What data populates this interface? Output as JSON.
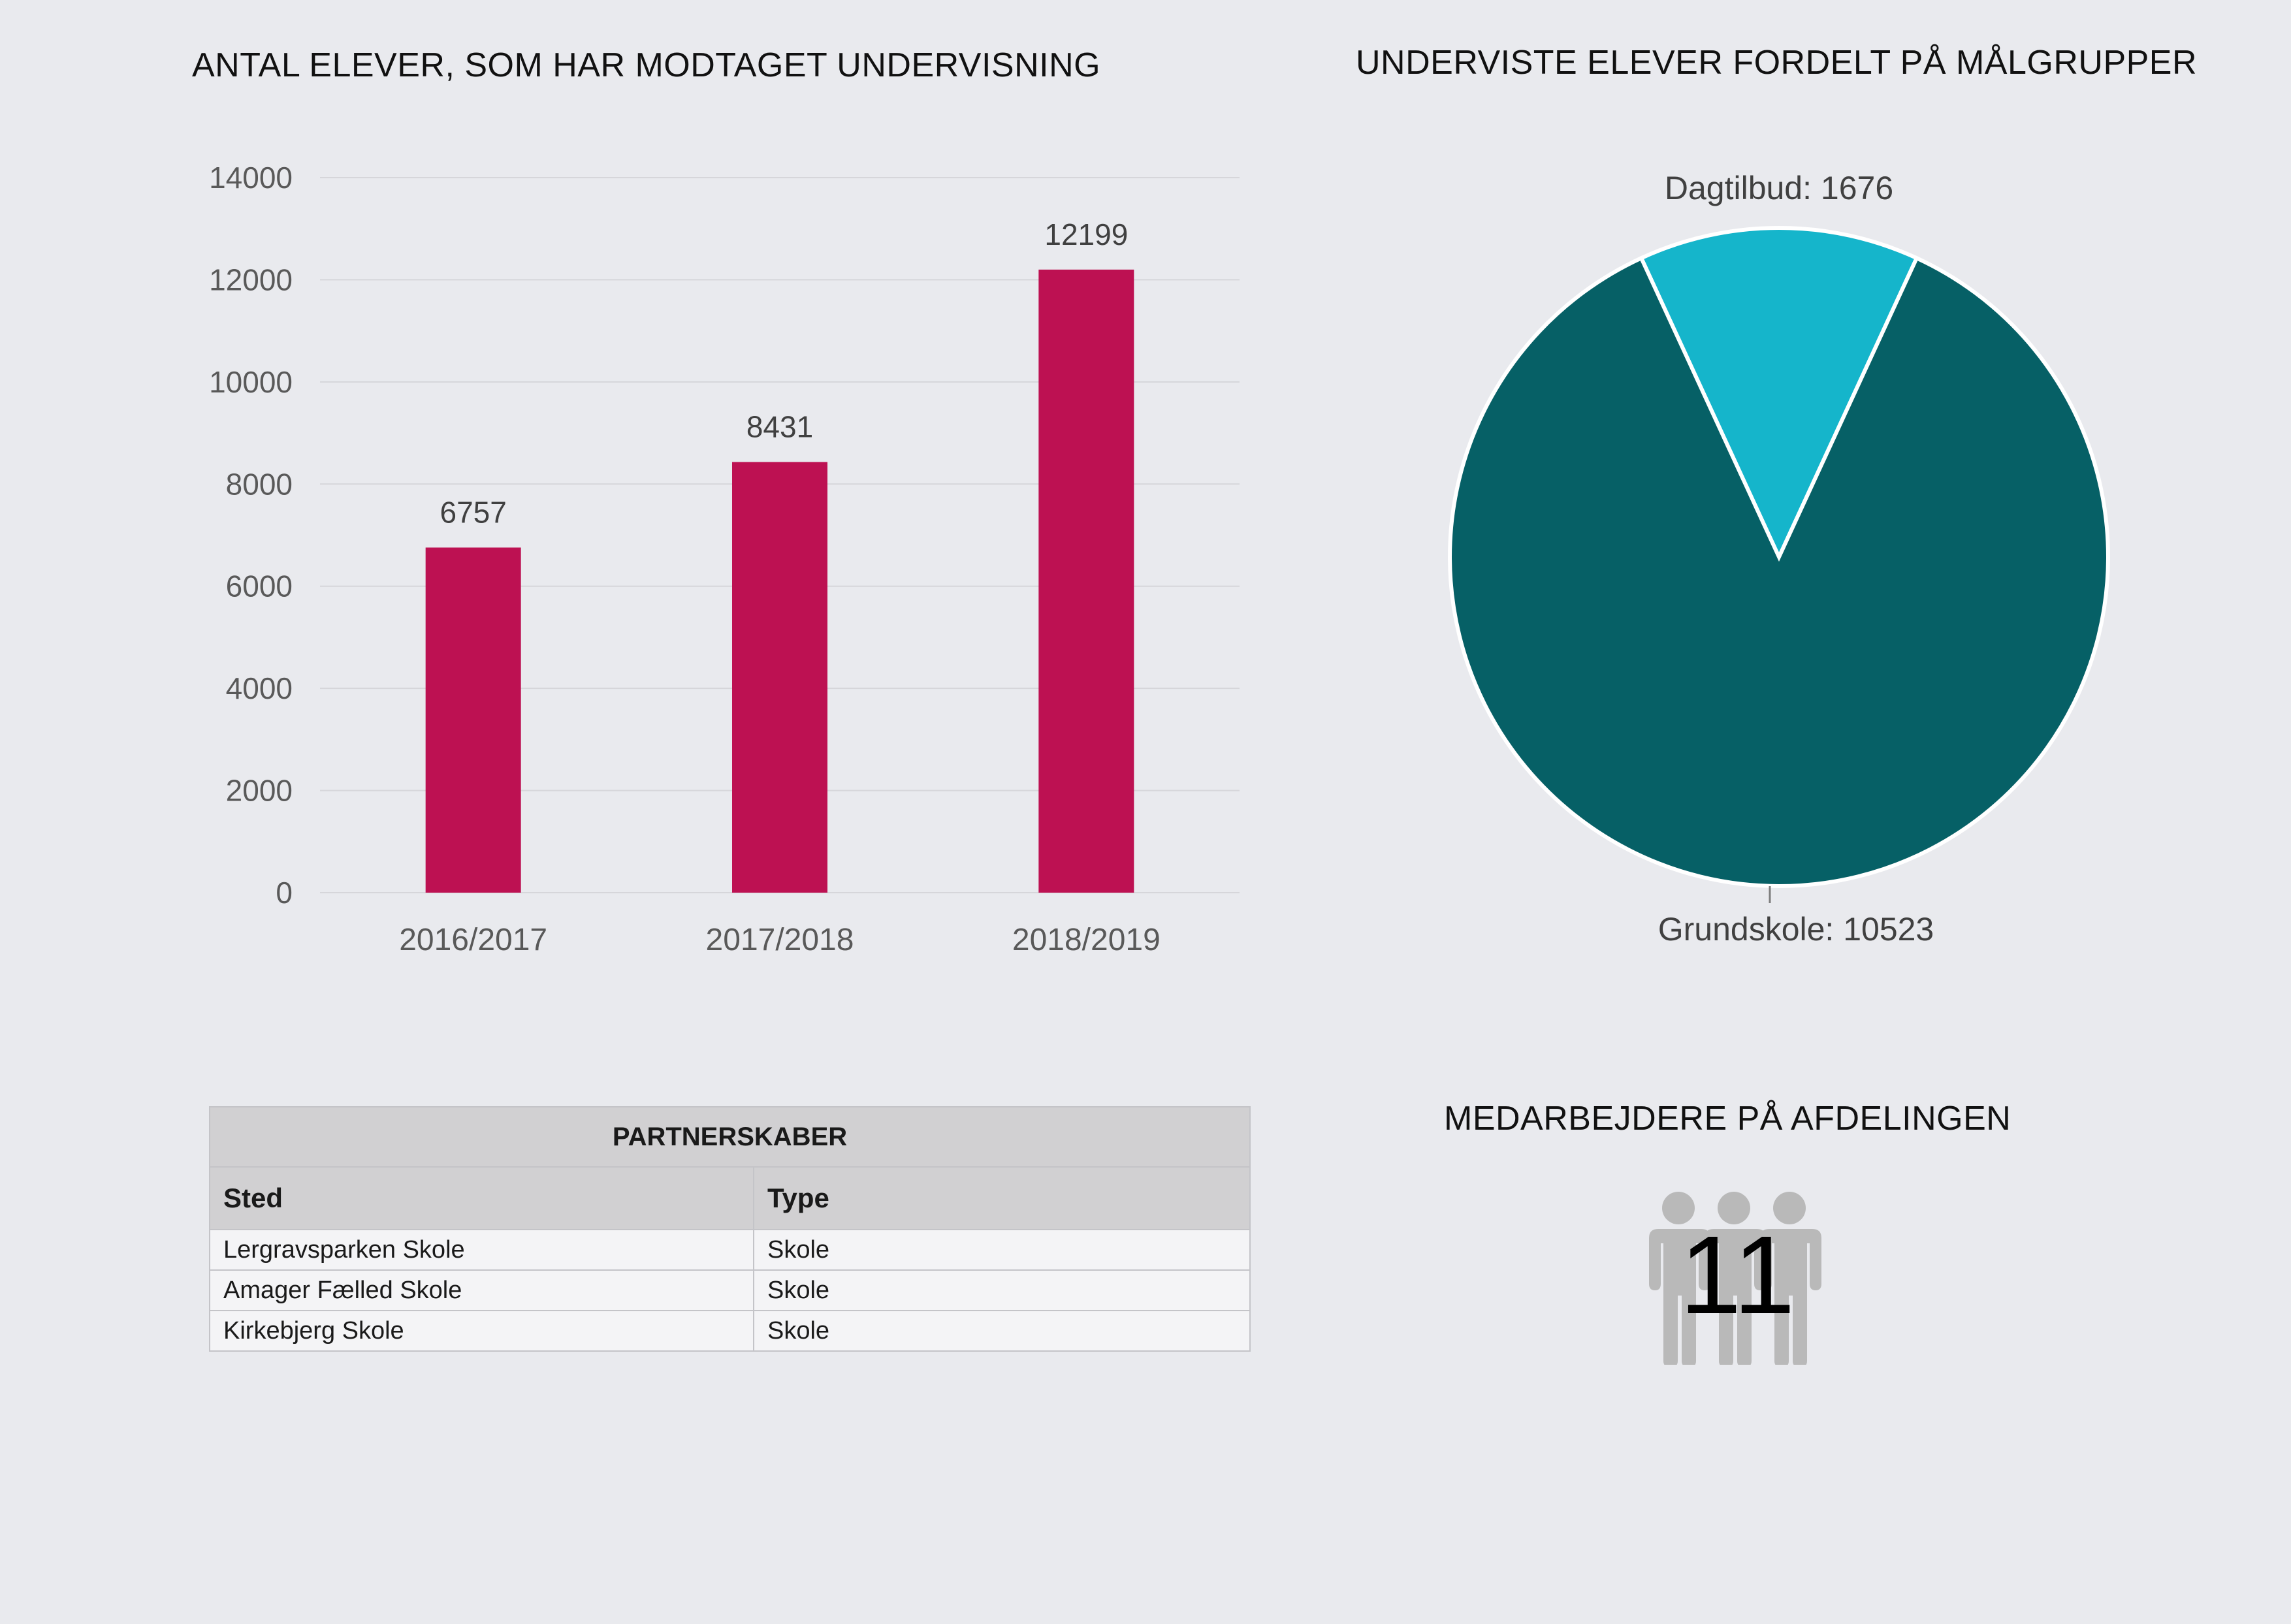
{
  "chart_data": [
    {
      "type": "bar",
      "title": "ANTAL ELEVER, SOM HAR MODTAGET UNDERVISNING",
      "categories": [
        "2016/2017",
        "2017/2018",
        "2018/2019"
      ],
      "values": [
        6757,
        8431,
        12199
      ],
      "ylim": [
        0,
        14000
      ],
      "yticks": [
        0,
        2000,
        4000,
        6000,
        8000,
        10000,
        12000,
        14000
      ],
      "grid": true,
      "bar_color": "#bd1152"
    },
    {
      "type": "pie",
      "title": "UNDERVISTE ELEVER FORDELT PÅ MÅLGRUPPER",
      "slices": [
        {
          "label": "Dagtilbud",
          "value": 1676,
          "display": "Dagtilbud: 1676",
          "color": "#15b5cb"
        },
        {
          "label": "Grundskole",
          "value": 10523,
          "display": "Grundskole: 10523",
          "color": "#066066"
        }
      ]
    }
  ],
  "partner_table": {
    "caption": "PARTNERSKABER",
    "headers": [
      "Sted",
      "Type"
    ],
    "rows": [
      [
        "Lergravsparken Skole",
        "Skole"
      ],
      [
        "Amager Fælled Skole",
        "Skole"
      ],
      [
        "Kirkebjerg Skole",
        "Skole"
      ]
    ]
  },
  "staff": {
    "title": "MEDARBEJDERE PÅ AFDELINGEN",
    "count": "11",
    "icon": "people-group-icon",
    "icon_color": "#b9b9b9"
  }
}
